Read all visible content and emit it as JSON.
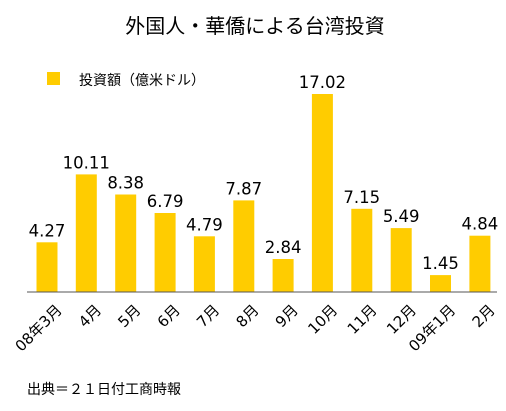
{
  "chart_data": {
    "type": "bar",
    "title": "外国人・華僑による台湾投資",
    "legend": [
      {
        "name": "投資額（億米ドル）",
        "color": "#ffcc00"
      }
    ],
    "categories": [
      "08年3月",
      "4月",
      "5月",
      "6月",
      "7月",
      "8月",
      "9月",
      "10月",
      "11月",
      "12月",
      "09年1月",
      "2月"
    ],
    "series": [
      {
        "name": "投資額（億米ドル）",
        "color": "#ffcc00",
        "values": [
          4.27,
          10.11,
          8.38,
          6.79,
          4.79,
          7.87,
          2.84,
          17.02,
          7.15,
          5.49,
          1.45,
          4.84
        ],
        "labels": [
          "4.27",
          "10.11",
          "8.38",
          "6.79",
          "4.79",
          "7.87",
          "2.84",
          "17.02",
          "7.15",
          "5.49",
          "1.45",
          "4.84"
        ]
      }
    ],
    "ylim": [
      0,
      17.02
    ],
    "grid": false,
    "legend_position": "top-left",
    "source": "出典＝２１日付工商時報"
  }
}
